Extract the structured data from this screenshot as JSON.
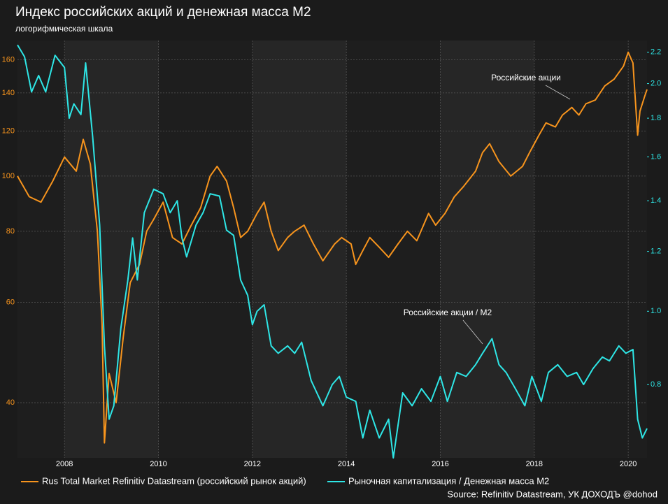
{
  "chart_data": {
    "type": "line",
    "title": "Индекс российских акций и денежная масса М2",
    "subtitle": "логорифмическая шкала",
    "source": "Source: Refinitiv Datastream, УК ДОХОДЪ @dohod",
    "annotations": [
      "Российские акции",
      "Российские акции / M2"
    ],
    "log_scale": true,
    "grid": true,
    "legend": "bottom",
    "xlim": [
      2007.0,
      2020.4
    ],
    "xticks": [
      2008,
      2010,
      2012,
      2014,
      2016,
      2018,
      2020
    ],
    "ylim": [
      32,
      173
    ],
    "yticks": [
      40,
      60,
      80,
      100,
      120,
      140,
      160
    ],
    "y2lim": [
      0.64,
      2.28
    ],
    "y2ticks": [
      0.8,
      {
        "value": 1.0,
        "label": "1.0"
      },
      1.2,
      1.4,
      1.6,
      1.8,
      {
        "value": 2.0,
        "label": "2.0"
      },
      2.2
    ],
    "series": [
      {
        "name": "Rus Total Market Refinitiv Datastream (российский рынок акций)",
        "color": "#f7941d",
        "x": [
          2007.0,
          2007.25,
          2007.5,
          2007.75,
          2008.0,
          2008.25,
          2008.4,
          2008.55,
          2008.7,
          2008.8,
          2008.85,
          2008.95,
          2009.1,
          2009.25,
          2009.4,
          2009.6,
          2009.75,
          2009.9,
          2010.1,
          2010.3,
          2010.5,
          2010.7,
          2010.9,
          2011.1,
          2011.25,
          2011.45,
          2011.6,
          2011.75,
          2011.9,
          2012.1,
          2012.25,
          2012.4,
          2012.55,
          2012.75,
          2012.9,
          2013.1,
          2013.3,
          2013.5,
          2013.75,
          2013.9,
          2014.1,
          2014.2,
          2014.35,
          2014.5,
          2014.7,
          2014.9,
          2015.1,
          2015.3,
          2015.5,
          2015.75,
          2015.9,
          2016.1,
          2016.3,
          2016.5,
          2016.75,
          2016.9,
          2017.05,
          2017.25,
          2017.5,
          2017.75,
          2017.9,
          2018.1,
          2018.25,
          2018.45,
          2018.6,
          2018.8,
          2018.95,
          2019.1,
          2019.3,
          2019.5,
          2019.7,
          2019.9,
          2020.0,
          2020.1,
          2020.2,
          2020.25,
          2020.35,
          2020.4
        ],
        "values": [
          100,
          92,
          90,
          98,
          108,
          102,
          116,
          105,
          80,
          55,
          34,
          45,
          40,
          52,
          65,
          70,
          80,
          84,
          90,
          78,
          76,
          82,
          88,
          100,
          104,
          98,
          88,
          78,
          80,
          86,
          90,
          80,
          74,
          78,
          80,
          82,
          76,
          71,
          76,
          78,
          76,
          70,
          74,
          78,
          75,
          72,
          76,
          80,
          77,
          86,
          82,
          86,
          92,
          96,
          102,
          110,
          114,
          106,
          100,
          104,
          110,
          118,
          124,
          122,
          128,
          132,
          128,
          134,
          136,
          144,
          148,
          156,
          165,
          158,
          118,
          130,
          138,
          142
        ]
      },
      {
        "name": "Рыночная капитализация / Денежная масса М2",
        "color": "#2ee6e6",
        "axis": "y2",
        "x": [
          2007.0,
          2007.15,
          2007.3,
          2007.45,
          2007.6,
          2007.8,
          2008.0,
          2008.1,
          2008.2,
          2008.35,
          2008.45,
          2008.6,
          2008.75,
          2008.85,
          2008.95,
          2009.05,
          2009.2,
          2009.35,
          2009.45,
          2009.55,
          2009.7,
          2009.9,
          2010.1,
          2010.25,
          2010.4,
          2010.5,
          2010.6,
          2010.8,
          2010.95,
          2011.1,
          2011.3,
          2011.45,
          2011.6,
          2011.75,
          2011.9,
          2012.0,
          2012.1,
          2012.25,
          2012.4,
          2012.55,
          2012.75,
          2012.9,
          2013.05,
          2013.25,
          2013.5,
          2013.7,
          2013.85,
          2014.0,
          2014.2,
          2014.35,
          2014.5,
          2014.7,
          2014.9,
          2015.0,
          2015.2,
          2015.4,
          2015.6,
          2015.8,
          2016.0,
          2016.15,
          2016.35,
          2016.55,
          2016.75,
          2016.9,
          2017.1,
          2017.25,
          2017.4,
          2017.6,
          2017.8,
          2017.95,
          2018.15,
          2018.3,
          2018.5,
          2018.7,
          2018.9,
          2019.05,
          2019.25,
          2019.45,
          2019.6,
          2019.8,
          2019.95,
          2020.1,
          2020.2,
          2020.3,
          2020.4
        ],
        "values": [
          2.25,
          2.17,
          1.95,
          2.05,
          1.95,
          2.18,
          2.1,
          1.8,
          1.88,
          1.82,
          2.13,
          1.7,
          1.3,
          0.9,
          0.72,
          0.75,
          0.95,
          1.1,
          1.25,
          1.1,
          1.35,
          1.45,
          1.43,
          1.35,
          1.4,
          1.25,
          1.18,
          1.3,
          1.35,
          1.43,
          1.42,
          1.28,
          1.26,
          1.1,
          1.05,
          0.96,
          1.0,
          1.02,
          0.9,
          0.88,
          0.9,
          0.88,
          0.91,
          0.81,
          0.75,
          0.8,
          0.82,
          0.77,
          0.76,
          0.68,
          0.74,
          0.68,
          0.72,
          0.64,
          0.78,
          0.75,
          0.79,
          0.76,
          0.82,
          0.76,
          0.83,
          0.82,
          0.85,
          0.88,
          0.92,
          0.85,
          0.83,
          0.79,
          0.75,
          0.82,
          0.76,
          0.83,
          0.85,
          0.82,
          0.83,
          0.8,
          0.84,
          0.87,
          0.86,
          0.9,
          0.88,
          0.89,
          0.72,
          0.68,
          0.7
        ]
      }
    ]
  }
}
